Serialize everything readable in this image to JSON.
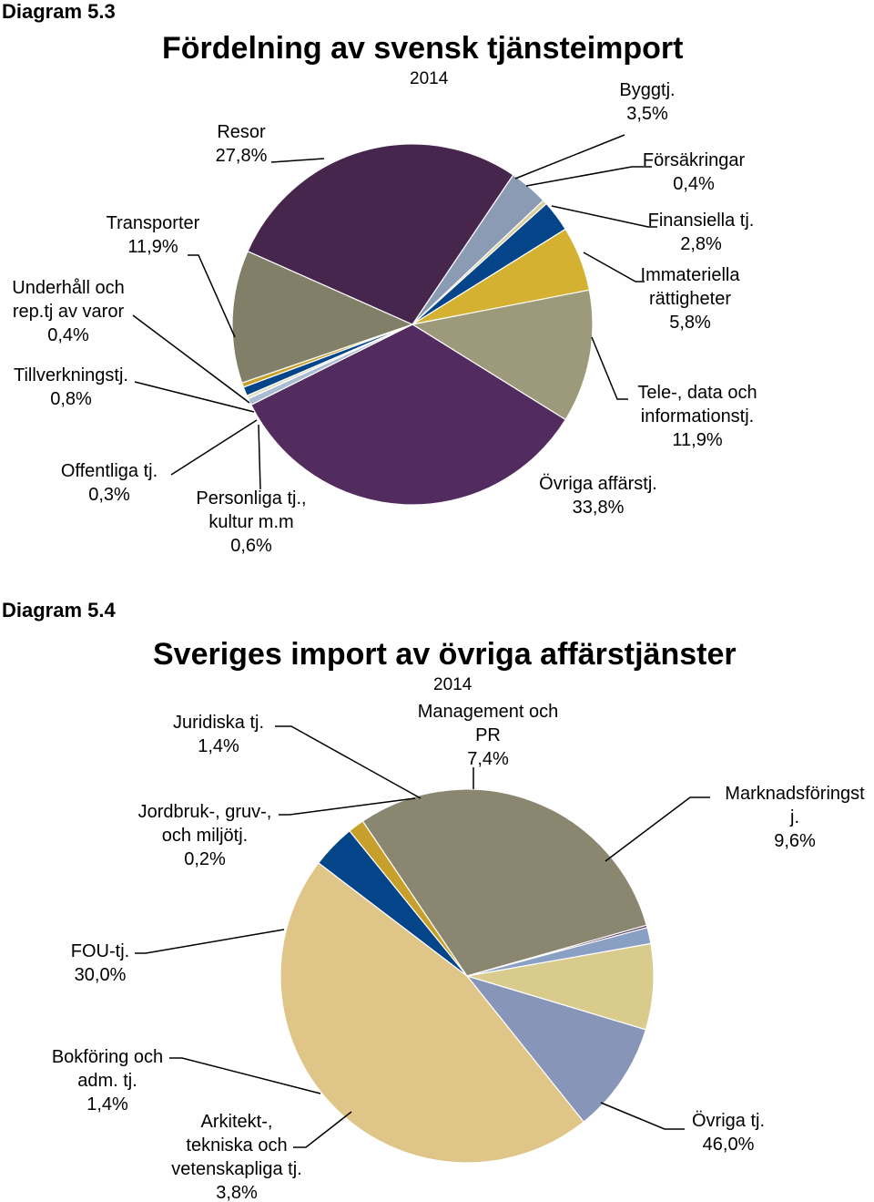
{
  "diagram1": {
    "label": "Diagram 5.3",
    "title": "Fördelning av svensk tjänsteimport",
    "year": "2014"
  },
  "diagram2": {
    "label": "Diagram 5.4",
    "title": "Sveriges import av övriga affärstjänster",
    "year": "2014"
  },
  "chart_data": [
    {
      "type": "pie",
      "title": "Fördelning av svensk tjänsteimport",
      "subtitle": "2014",
      "slices": [
        {
          "label": [
            "Byggtj."
          ],
          "value_text": "3,5%",
          "value": 3.5,
          "color": "#8A9BB3"
        },
        {
          "label": [
            "Försäkringar"
          ],
          "value_text": "0,4%",
          "value": 0.4,
          "color": "#D7CE9A"
        },
        {
          "label": [
            "Finansiella tj."
          ],
          "value_text": "2,8%",
          "value": 2.8,
          "color": "#04458A"
        },
        {
          "label": [
            "Immateriella",
            "rättigheter"
          ],
          "value_text": "5,8%",
          "value": 5.8,
          "color": "#D4B130"
        },
        {
          "label": [
            "Tele-, data och",
            "informationstj."
          ],
          "value_text": "11,9%",
          "value": 11.9,
          "color": "#9D9A7B"
        },
        {
          "label": [
            "Övriga affärstj."
          ],
          "value_text": "33,8%",
          "value": 33.8,
          "color": "#532C5F"
        },
        {
          "label": [
            "Personliga tj.,",
            "kultur m.m"
          ],
          "value_text": "0,6%",
          "value": 0.6,
          "color": "#A9BCD4"
        },
        {
          "label": [
            "Offentliga tj."
          ],
          "value_text": "0,3%",
          "value": 0.3,
          "color": "#E2DEC4"
        },
        {
          "label": [
            "Tillverkningstj."
          ],
          "value_text": "0,8%",
          "value": 0.8,
          "color": "#04458A"
        },
        {
          "label": [
            "Underhåll och",
            "rep.tj av varor"
          ],
          "value_text": "0,4%",
          "value": 0.4,
          "color": "#C6A02A"
        },
        {
          "label": [
            "Transporter"
          ],
          "value_text": "11,9%",
          "value": 11.9,
          "color": "#817F67"
        },
        {
          "label": [
            "Resor"
          ],
          "value_text": "27,8%",
          "value": 27.8,
          "color": "#47264E"
        }
      ]
    },
    {
      "type": "pie",
      "title": "Sveriges import av övriga affärstjänster",
      "subtitle": "2014",
      "slices": [
        {
          "label": [
            "Management och",
            "PR"
          ],
          "value_text": "7,4%",
          "value": 7.4,
          "color": "#D8CB8C"
        },
        {
          "label": [
            "Marknadsföringst",
            "j."
          ],
          "value_text": "9,6%",
          "value": 9.6,
          "color": "#8795B8"
        },
        {
          "label": [
            "Övriga tj."
          ],
          "value_text": "46,0%",
          "value": 46.0,
          "color": "#DFC587"
        },
        {
          "label": [
            "Arkitekt-,",
            "tekniska och",
            "vetenskapliga tj."
          ],
          "value_text": "3,8%",
          "value": 3.8,
          "color": "#04458A"
        },
        {
          "label": [
            "Bokföring och",
            "adm. tj."
          ],
          "value_text": "1,4%",
          "value": 1.4,
          "color": "#C6A02A"
        },
        {
          "label": [
            "FOU-tj."
          ],
          "value_text": "30,0%",
          "value": 30.0,
          "color": "#8A8670"
        },
        {
          "label": [
            "Jordbruk-, gruv-,",
            "och miljötj."
          ],
          "value_text": "0,2%",
          "value": 0.2,
          "color": "#532C5F"
        },
        {
          "label": [
            "Juridiska tj."
          ],
          "value_text": "1,4%",
          "value": 1.4,
          "color": "#8A9FC4"
        }
      ]
    }
  ]
}
